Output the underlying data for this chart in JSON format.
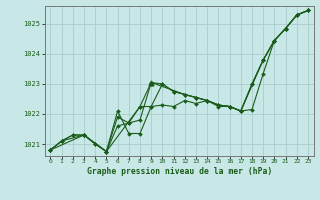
{
  "title": "Graphe pression niveau de la mer (hPa)",
  "background_color": "#c8e8e8",
  "grid_color": "#aacccc",
  "line_color": "#1a5c1a",
  "xlim": [
    -0.5,
    23.5
  ],
  "ylim": [
    1020.6,
    1025.6
  ],
  "yticks": [
    1021,
    1022,
    1023,
    1024,
    1025
  ],
  "xticks": [
    0,
    1,
    2,
    3,
    4,
    5,
    6,
    7,
    8,
    9,
    10,
    11,
    12,
    13,
    14,
    15,
    16,
    17,
    18,
    19,
    20,
    21,
    22,
    23
  ],
  "line1_x": [
    0,
    1,
    2,
    3,
    4,
    5,
    6,
    7,
    8,
    9,
    10,
    11,
    12,
    13,
    14,
    15,
    16,
    17,
    18,
    19,
    20,
    21,
    22,
    23
  ],
  "line1_y": [
    1020.8,
    1021.1,
    1021.3,
    1021.3,
    1021.0,
    1020.75,
    1021.6,
    1021.7,
    1021.8,
    1023.05,
    1023.0,
    1022.75,
    1022.65,
    1022.55,
    1022.45,
    1022.3,
    1022.25,
    1022.1,
    1023.0,
    1023.8,
    1024.45,
    1024.85,
    1025.3,
    1025.45
  ],
  "line2_x": [
    0,
    1,
    2,
    3,
    4,
    5,
    6,
    7,
    8,
    9,
    10,
    11,
    12,
    13,
    14,
    15,
    16,
    17,
    18,
    19,
    20,
    21,
    22,
    23
  ],
  "line2_y": [
    1020.8,
    1021.1,
    1021.3,
    1021.3,
    1021.0,
    1020.75,
    1021.9,
    1021.7,
    1022.25,
    1022.25,
    1022.3,
    1022.25,
    1022.45,
    1022.35,
    1022.45,
    1022.25,
    1022.25,
    1022.1,
    1022.15,
    1023.35,
    1024.45,
    1024.85,
    1025.3,
    1025.45
  ],
  "line3_x": [
    0,
    3,
    5,
    6,
    7,
    8,
    9,
    10,
    11,
    12,
    13,
    14,
    15,
    16,
    17,
    18,
    19,
    20,
    21,
    22,
    23
  ],
  "line3_y": [
    1020.8,
    1021.3,
    1020.75,
    1022.1,
    1021.35,
    1021.35,
    1022.25,
    1023.0,
    1022.75,
    1022.65,
    1022.55,
    1022.45,
    1022.3,
    1022.25,
    1022.1,
    1023.0,
    1023.8,
    1024.45,
    1024.85,
    1025.3,
    1025.45
  ],
  "line4_x": [
    0,
    1,
    3,
    5,
    8,
    9,
    12,
    13,
    14,
    15,
    16,
    17,
    19,
    20,
    21,
    22,
    23
  ],
  "line4_y": [
    1020.8,
    1021.1,
    1021.3,
    1020.75,
    1022.25,
    1023.05,
    1022.65,
    1022.55,
    1022.45,
    1022.3,
    1022.25,
    1022.1,
    1023.8,
    1024.45,
    1024.85,
    1025.3,
    1025.45
  ],
  "triangle_x": [
    9
  ],
  "triangle_y": [
    1023.05
  ]
}
